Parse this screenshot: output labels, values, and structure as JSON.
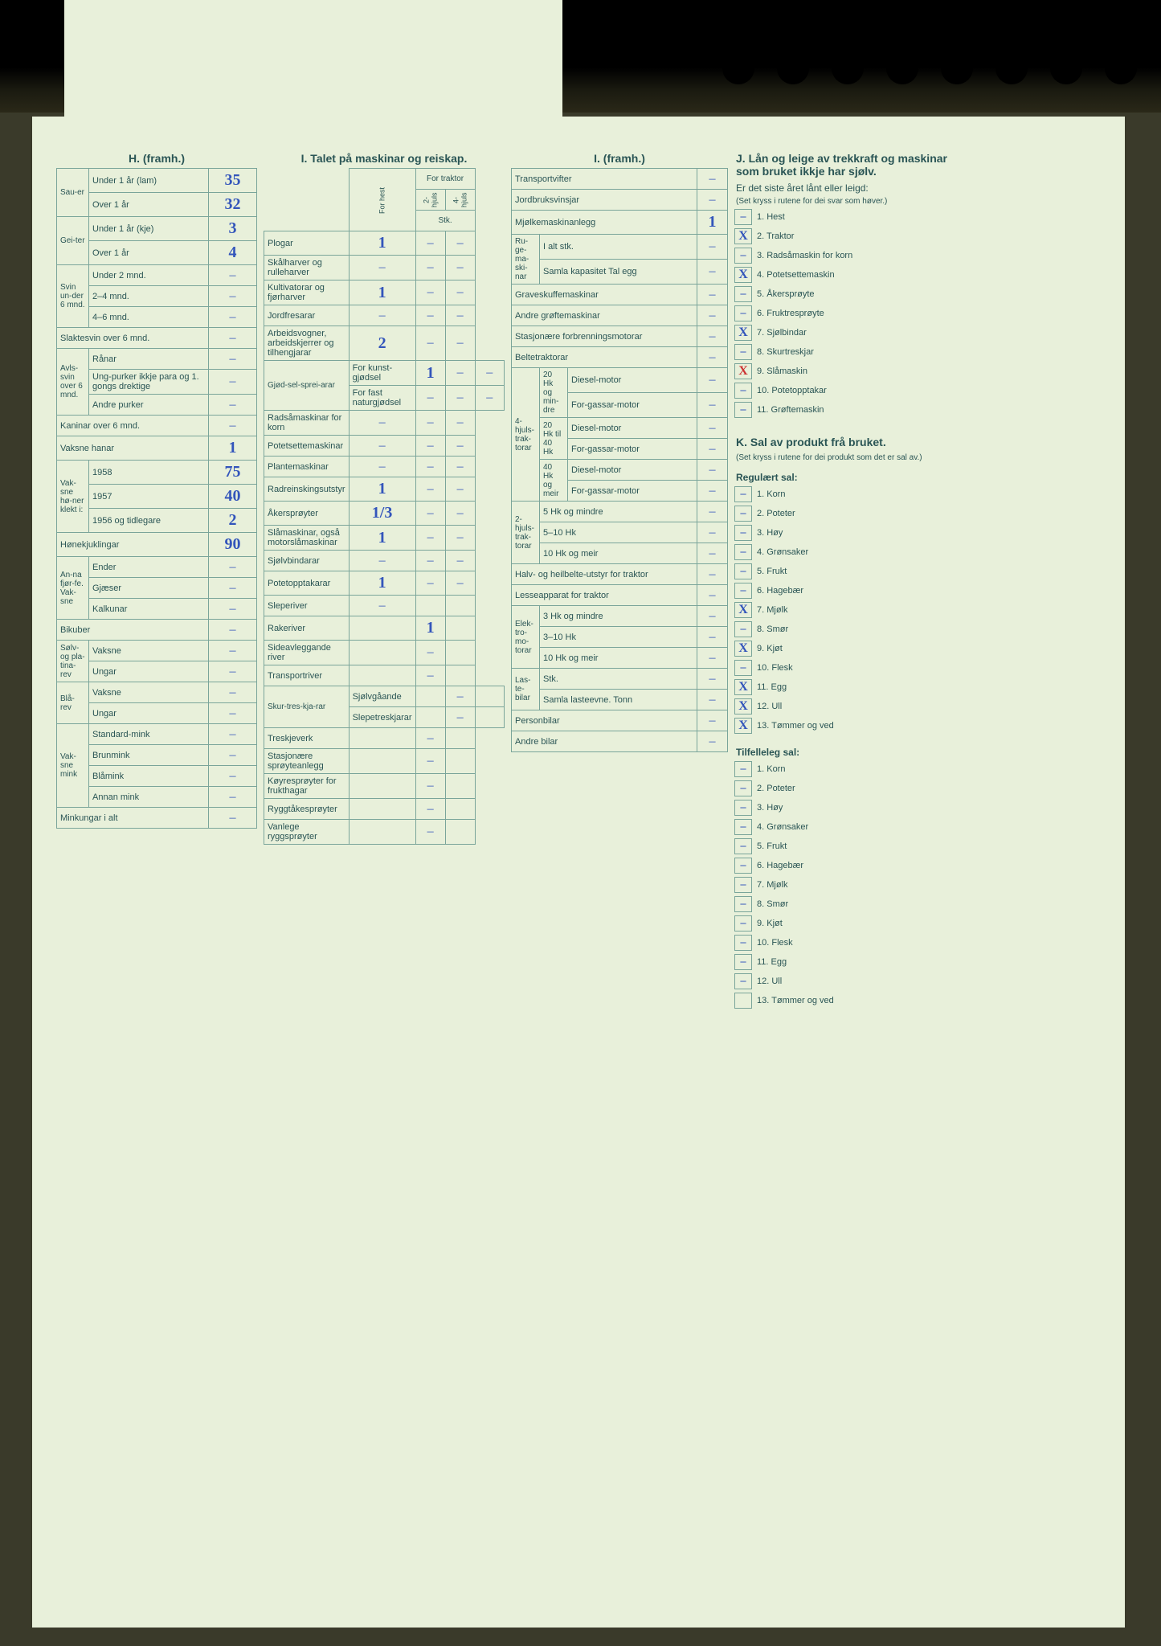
{
  "colors": {
    "paper_bg": "#e8f0da",
    "border": "#7aa59a",
    "text": "#2a5555",
    "handwriting": "#3355bb",
    "red_mark": "#cc3333"
  },
  "sectionH": {
    "title": "H. (framh.)",
    "groups": [
      {
        "group": "Sau-er",
        "rows": [
          {
            "label": "Under 1 år (lam)",
            "value": "35"
          },
          {
            "label": "Over 1 år",
            "value": "32"
          }
        ]
      },
      {
        "group": "Gei-ter",
        "rows": [
          {
            "label": "Under 1 år (kje)",
            "value": "3"
          },
          {
            "label": "Over 1 år",
            "value": "4"
          }
        ]
      },
      {
        "group": "Svin un-der 6 mnd.",
        "rows": [
          {
            "label": "Under 2 mnd.",
            "value": "–"
          },
          {
            "label": "2–4 mnd.",
            "value": "–"
          },
          {
            "label": "4–6 mnd.",
            "value": "–"
          }
        ]
      },
      {
        "group": "",
        "rows": [
          {
            "label": "Slaktesvin over 6 mnd.",
            "value": "–"
          }
        ]
      },
      {
        "group": "Avls-svin over 6 mnd.",
        "rows": [
          {
            "label": "Rånar",
            "value": "–"
          },
          {
            "label": "Ung-purker ikkje para og 1. gongs drektige",
            "value": "–"
          },
          {
            "label": "Andre purker",
            "value": "–"
          }
        ]
      },
      {
        "group": "",
        "rows": [
          {
            "label": "Kaninar over 6 mnd.",
            "value": "–"
          },
          {
            "label": "Vaksne hanar",
            "value": "1"
          }
        ]
      },
      {
        "group": "Vak-sne hø-ner klekt i:",
        "rows": [
          {
            "label": "1958",
            "value": "75"
          },
          {
            "label": "1957",
            "value": "40"
          },
          {
            "label": "1956 og tidlegare",
            "value": "2"
          }
        ]
      },
      {
        "group": "",
        "rows": [
          {
            "label": "Hønekjuklingar",
            "value": "90"
          }
        ]
      },
      {
        "group": "An-na fjør-fe. Vak-sne",
        "rows": [
          {
            "label": "Ender",
            "value": "–"
          },
          {
            "label": "Gjæser",
            "value": "–"
          },
          {
            "label": "Kalkunar",
            "value": "–"
          }
        ]
      },
      {
        "group": "",
        "rows": [
          {
            "label": "Bikuber",
            "value": "–"
          }
        ]
      },
      {
        "group": "Sølv- og pla-tina-rev",
        "rows": [
          {
            "label": "Vaksne",
            "value": "–"
          },
          {
            "label": "Ungar",
            "value": "–"
          }
        ]
      },
      {
        "group": "Blå-rev",
        "rows": [
          {
            "label": "Vaksne",
            "value": "–"
          },
          {
            "label": "Ungar",
            "value": "–"
          }
        ]
      },
      {
        "group": "Vak-sne mink",
        "rows": [
          {
            "label": "Standard-mink",
            "value": "–"
          },
          {
            "label": "Brunmink",
            "value": "–"
          },
          {
            "label": "Blåmink",
            "value": "–"
          },
          {
            "label": "Annan mink",
            "value": "–"
          }
        ]
      },
      {
        "group": "",
        "rows": [
          {
            "label": "Minkungar i alt",
            "value": "–"
          }
        ]
      }
    ]
  },
  "sectionI_machines": {
    "title": "I. Talet på maskinar og reiskap.",
    "col_headers": {
      "h1": "For hest",
      "h2": "2-hjuls",
      "h3": "4-hjuls",
      "group": "For traktor",
      "stk": "Stk."
    },
    "rows": [
      {
        "label": "Plogar",
        "v": [
          "1",
          "–",
          "–"
        ]
      },
      {
        "label": "Skålharver og rulleharver",
        "v": [
          "–",
          "–",
          "–"
        ]
      },
      {
        "label": "Kultivatorar og fjørharver",
        "v": [
          "1",
          "–",
          "–"
        ]
      },
      {
        "label": "Jordfresarar",
        "v": [
          "–",
          "–",
          "–"
        ]
      },
      {
        "label": "Arbeidsvogner, arbeidskjerrer og tilhengjarar",
        "v": [
          "2",
          "–",
          "–"
        ]
      },
      {
        "sublabel": "Gjød-sel-sprei-arar",
        "label": "For kunst-gjødsel",
        "v": [
          "1",
          "–",
          "–"
        ]
      },
      {
        "sublabel": "",
        "label": "For fast naturgjødsel",
        "v": [
          "–",
          "–",
          "–"
        ]
      },
      {
        "label": "Radsåmaskinar for korn",
        "v": [
          "–",
          "–",
          "–"
        ]
      },
      {
        "label": "Potetsettemaskinar",
        "v": [
          "–",
          "–",
          "–"
        ]
      },
      {
        "label": "Plantemaskinar",
        "v": [
          "–",
          "–",
          "–"
        ]
      },
      {
        "label": "Radreinskingsutstyr",
        "v": [
          "1",
          "–",
          "–"
        ]
      },
      {
        "label": "Åkersprøyter",
        "v": [
          "1/3",
          "–",
          "–"
        ]
      },
      {
        "label": "Slåmaskinar, også motorslåmaskinar",
        "v": [
          "1",
          "–",
          "–"
        ]
      },
      {
        "label": "Sjølvbindarar",
        "v": [
          "–",
          "–",
          "–"
        ]
      },
      {
        "label": "Potetopptakarar",
        "v": [
          "1",
          "–",
          "–"
        ]
      },
      {
        "label": "Sleperiver",
        "v": [
          "–",
          "",
          ""
        ]
      },
      {
        "label": "Rakeriver",
        "v": [
          "",
          "1",
          ""
        ]
      },
      {
        "label": "Sideavleggande river",
        "v": [
          "",
          "–",
          ""
        ]
      },
      {
        "label": "Transportriver",
        "v": [
          "",
          "–",
          ""
        ]
      },
      {
        "sublabel": "Skur-tres-kja-rar",
        "label": "Sjølvgåande",
        "v": [
          "",
          "–",
          ""
        ]
      },
      {
        "sublabel": "",
        "label": "Slepetreskjarar",
        "v": [
          "",
          "–",
          ""
        ]
      },
      {
        "label": "Treskjeverk",
        "v": [
          "",
          "–",
          ""
        ]
      },
      {
        "label": "Stasjonære sprøyteanlegg",
        "v": [
          "",
          "–",
          ""
        ]
      },
      {
        "label": "Køyresprøyter for frukthagar",
        "v": [
          "",
          "–",
          ""
        ]
      },
      {
        "label": "Ryggtåkesprøyter",
        "v": [
          "",
          "–",
          ""
        ]
      },
      {
        "label": "Vanlege ryggsprøyter",
        "v": [
          "",
          "–",
          ""
        ]
      }
    ]
  },
  "sectionI_cont": {
    "title": "I. (framh.)",
    "simple_rows": [
      {
        "label": "Transportvifter",
        "value": "–"
      },
      {
        "label": "Jordbruksvinsjar",
        "value": "–"
      },
      {
        "label": "Mjølkemaskinanlegg",
        "value": "1"
      }
    ],
    "ruge": {
      "group": "Ru-ge-ma-ski-nar",
      "rows": [
        {
          "label": "I alt stk.",
          "value": "–"
        },
        {
          "label": "Samla kapasitet Tal egg",
          "value": "–"
        }
      ]
    },
    "more_rows": [
      {
        "label": "Graveskuffemaskinar",
        "value": "–"
      },
      {
        "label": "Andre grøftemaskinar",
        "value": "–"
      },
      {
        "label": "Stasjonære forbrenningsmotorar",
        "value": "–"
      },
      {
        "label": "Beltetraktorar",
        "value": "–"
      }
    ],
    "traktor4": {
      "group": "4-hjuls-trak-torar",
      "sub": [
        {
          "g": "20 Hk og min-dre",
          "rows": [
            {
              "l": "Diesel-motor",
              "v": "–"
            },
            {
              "l": "For-gassar-motor",
              "v": "–"
            }
          ]
        },
        {
          "g": "20 Hk til 40 Hk",
          "rows": [
            {
              "l": "Diesel-motor",
              "v": "–"
            },
            {
              "l": "For-gassar-motor",
              "v": "–"
            }
          ]
        },
        {
          "g": "40 Hk og meir",
          "rows": [
            {
              "l": "Diesel-motor",
              "v": "–"
            },
            {
              "l": "For-gassar-motor",
              "v": "–"
            }
          ]
        }
      ]
    },
    "traktor2": {
      "group": "2-hjuls-trak-torar",
      "rows": [
        {
          "label": "5 Hk og mindre",
          "value": "–"
        },
        {
          "label": "5–10 Hk",
          "value": "–"
        },
        {
          "label": "10 Hk og meir",
          "value": "–"
        }
      ]
    },
    "halv": {
      "label": "Halv- og heilbelte-utstyr for traktor",
      "value": "–"
    },
    "lesse": {
      "label": "Lesseapparat for traktor",
      "value": "–"
    },
    "elektro": {
      "group": "Elek-tro-mo-torar",
      "rows": [
        {
          "label": "3 Hk og mindre",
          "value": "–"
        },
        {
          "label": "3–10 Hk",
          "value": "–"
        },
        {
          "label": "10 Hk og meir",
          "value": "–"
        }
      ]
    },
    "laste": {
      "group": "Las-te-bilar",
      "rows": [
        {
          "label": "Stk.",
          "value": "–"
        },
        {
          "label": "Samla lasteevne. Tonn",
          "value": "–"
        }
      ]
    },
    "person": {
      "label": "Personbilar",
      "value": "–"
    },
    "andre": {
      "label": "Andre bilar",
      "value": "–"
    }
  },
  "sectionJ": {
    "title": "J. Lån og leige av trekkraft og maskinar som bruket ikkje har sjølv.",
    "subtitle": "Er det siste året lånt eller leigd:",
    "hint": "(Set kryss i rutene for dei svar som høver.)",
    "items": [
      {
        "n": "1.",
        "label": "Hest",
        "mark": "–"
      },
      {
        "n": "2.",
        "label": "Traktor",
        "mark": "X"
      },
      {
        "n": "3.",
        "label": "Radsåmaskin for korn",
        "mark": "–"
      },
      {
        "n": "4.",
        "label": "Potetsettemaskin",
        "mark": "X"
      },
      {
        "n": "5.",
        "label": "Åkersprøyte",
        "mark": "–"
      },
      {
        "n": "6.",
        "label": "Fruktresprøyte",
        "mark": "–"
      },
      {
        "n": "7.",
        "label": "Sjølbindar",
        "mark": "X"
      },
      {
        "n": "8.",
        "label": "Skurtreskjar",
        "mark": "–"
      },
      {
        "n": "9.",
        "label": "Slåmaskin",
        "mark": "X",
        "red": true
      },
      {
        "n": "10.",
        "label": "Potetopptakar",
        "mark": "–"
      },
      {
        "n": "11.",
        "label": "Grøftemaskin",
        "mark": "–"
      }
    ]
  },
  "sectionK": {
    "title": "K. Sal av produkt frå bruket.",
    "hint": "(Set kryss i rutene for dei produkt som det er sal av.)",
    "regulart": "Regulært sal:",
    "items1": [
      {
        "n": "1.",
        "label": "Korn",
        "mark": "–"
      },
      {
        "n": "2.",
        "label": "Poteter",
        "mark": "–"
      },
      {
        "n": "3.",
        "label": "Høy",
        "mark": "–"
      },
      {
        "n": "4.",
        "label": "Grønsaker",
        "mark": "–"
      },
      {
        "n": "5.",
        "label": "Frukt",
        "mark": "–"
      },
      {
        "n": "6.",
        "label": "Hagebær",
        "mark": "–"
      },
      {
        "n": "7.",
        "label": "Mjølk",
        "mark": "X"
      },
      {
        "n": "8.",
        "label": "Smør",
        "mark": "–"
      },
      {
        "n": "9.",
        "label": "Kjøt",
        "mark": "X"
      },
      {
        "n": "10.",
        "label": "Flesk",
        "mark": "–"
      },
      {
        "n": "11.",
        "label": "Egg",
        "mark": "X"
      },
      {
        "n": "12.",
        "label": "Ull",
        "mark": "X"
      },
      {
        "n": "13.",
        "label": "Tømmer og ved",
        "mark": "X"
      }
    ],
    "tilfelle": "Tilfelleleg sal:",
    "items2": [
      {
        "n": "1.",
        "label": "Korn",
        "mark": "–"
      },
      {
        "n": "2.",
        "label": "Poteter",
        "mark": "–"
      },
      {
        "n": "3.",
        "label": "Høy",
        "mark": "–"
      },
      {
        "n": "4.",
        "label": "Grønsaker",
        "mark": "–"
      },
      {
        "n": "5.",
        "label": "Frukt",
        "mark": "–"
      },
      {
        "n": "6.",
        "label": "Hagebær",
        "mark": "–"
      },
      {
        "n": "7.",
        "label": "Mjølk",
        "mark": "–"
      },
      {
        "n": "8.",
        "label": "Smør",
        "mark": "–"
      },
      {
        "n": "9.",
        "label": "Kjøt",
        "mark": "–"
      },
      {
        "n": "10.",
        "label": "Flesk",
        "mark": "–"
      },
      {
        "n": "11.",
        "label": "Egg",
        "mark": "–"
      },
      {
        "n": "12.",
        "label": "Ull",
        "mark": "–"
      },
      {
        "n": "13.",
        "label": "Tømmer og ved",
        "mark": ""
      }
    ]
  }
}
